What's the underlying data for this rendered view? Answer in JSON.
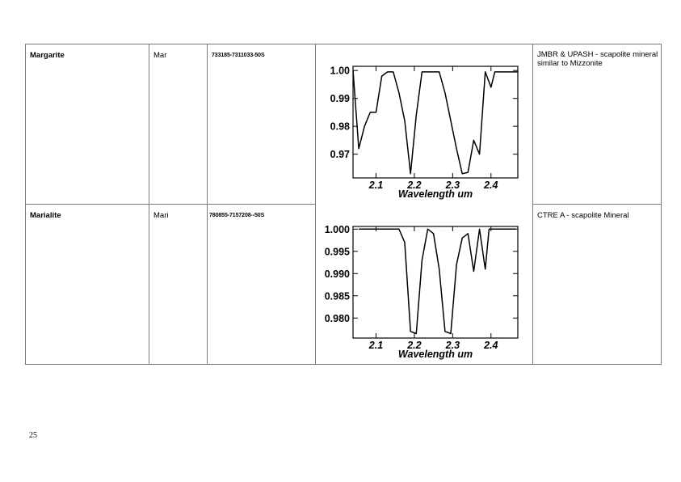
{
  "table": {
    "rows": [
      {
        "mineral": "Margarite",
        "abbr": "Mar",
        "code": "733185-7311033-50S",
        "note": "JMBR & UPASH - scapolite mineral similar to Mizzonite"
      },
      {
        "mineral": "Marialite",
        "abbr": "Mari",
        "code": "780855-7157208--50S",
        "note": "CTRE A - scapolite Mineral"
      }
    ]
  },
  "chart_data": [
    {
      "type": "line",
      "title": "",
      "xlabel": "Wavelength um",
      "ylabel": "",
      "xlim": [
        2.04,
        2.47
      ],
      "ylim": [
        0.9615,
        1.0015
      ],
      "xticks": [
        2.1,
        2.2,
        2.3,
        2.4
      ],
      "xtick_labels": [
        "2.1",
        "2.2",
        "2.3",
        "2.4"
      ],
      "yticks": [
        0.97,
        0.98,
        0.99,
        1.0
      ],
      "ytick_labels": [
        "0.97",
        "0.98",
        "0.99",
        "1.00"
      ],
      "series": [
        {
          "x": [
            2.04,
            2.055,
            2.07,
            2.085,
            2.1,
            2.115,
            2.13,
            2.145,
            2.16,
            2.175,
            2.19,
            2.205,
            2.22,
            2.235,
            2.25,
            2.265,
            2.28,
            2.295,
            2.31,
            2.325,
            2.34,
            2.355,
            2.37,
            2.385,
            2.4,
            2.41,
            2.425,
            2.44,
            2.455,
            2.47
          ],
          "y": [
            1.0,
            0.972,
            0.98,
            0.985,
            0.985,
            0.998,
            0.9995,
            0.9995,
            0.992,
            0.982,
            0.963,
            0.984,
            0.9995,
            0.9995,
            0.9995,
            0.9995,
            0.992,
            0.982,
            0.972,
            0.963,
            0.9635,
            0.975,
            0.97,
            0.9995,
            0.994,
            0.9995,
            0.9995,
            0.9995,
            0.9995,
            0.9995
          ]
        }
      ]
    },
    {
      "type": "line",
      "title": "",
      "xlabel": "Wavelength um",
      "ylabel": "",
      "xlim": [
        2.04,
        2.47
      ],
      "ylim": [
        0.9755,
        1.0006
      ],
      "xticks": [
        2.1,
        2.2,
        2.3,
        2.4
      ],
      "xtick_labels": [
        "2.1",
        "2.2",
        "2.3",
        "2.4"
      ],
      "yticks": [
        0.98,
        0.985,
        0.99,
        0.995,
        1.0
      ],
      "ytick_labels": [
        "0.980",
        "0.985",
        "0.990",
        "0.995",
        "1.000"
      ],
      "series": [
        {
          "x": [
            2.055,
            2.07,
            2.085,
            2.1,
            2.115,
            2.13,
            2.145,
            2.16,
            2.175,
            2.19,
            2.205,
            2.22,
            2.235,
            2.25,
            2.265,
            2.28,
            2.295,
            2.31,
            2.325,
            2.34,
            2.355,
            2.37,
            2.385,
            2.395,
            2.405,
            2.42,
            2.435,
            2.45,
            2.465
          ],
          "y": [
            1.0,
            1.0,
            1.0,
            1.0,
            1.0,
            1.0,
            1.0,
            1.0,
            0.997,
            0.977,
            0.9765,
            0.993,
            1.0,
            0.999,
            0.991,
            0.977,
            0.9765,
            0.992,
            0.998,
            0.999,
            0.9905,
            1.0,
            0.991,
            1.0,
            1.0,
            1.0,
            1.0,
            1.0,
            1.0
          ]
        }
      ]
    }
  ],
  "page": {
    "number": "25"
  }
}
